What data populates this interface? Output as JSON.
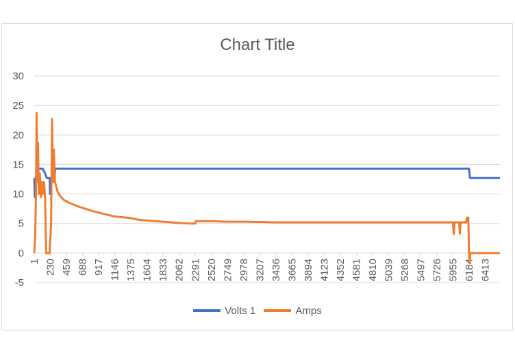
{
  "chart_data": {
    "type": "line",
    "title": "Chart Title",
    "xlabel": "",
    "ylabel": "",
    "ylim": [
      -5,
      30
    ],
    "yticks": [
      -5,
      0,
      5,
      10,
      15,
      20,
      25,
      30
    ],
    "xlim": [
      1,
      6620
    ],
    "xticks": [
      1,
      230,
      459,
      688,
      917,
      1146,
      1375,
      1604,
      1833,
      2062,
      2291,
      2520,
      2749,
      2978,
      3207,
      3436,
      3665,
      3894,
      4123,
      4352,
      4581,
      4810,
      5039,
      5268,
      5497,
      5726,
      5955,
      6184,
      6413
    ],
    "grid": true,
    "legend_position": "bottom",
    "series": [
      {
        "name": "Volts 1",
        "color": "#4472c4",
        "points": [
          [
            1,
            12.7
          ],
          [
            10,
            9.5
          ],
          [
            20,
            12.8
          ],
          [
            40,
            13.5
          ],
          [
            60,
            14.3
          ],
          [
            120,
            14.3
          ],
          [
            150,
            13.6
          ],
          [
            180,
            12.7
          ],
          [
            220,
            12.7
          ],
          [
            225,
            10.0
          ],
          [
            240,
            10.0
          ],
          [
            245,
            12.7
          ],
          [
            290,
            12.7
          ],
          [
            300,
            14.3
          ],
          [
            6180,
            14.3
          ],
          [
            6195,
            12.7
          ],
          [
            6620,
            12.7
          ]
        ]
      },
      {
        "name": "Amps",
        "color": "#ed7d31",
        "points": [
          [
            1,
            0
          ],
          [
            15,
            3
          ],
          [
            25,
            10
          ],
          [
            35,
            23.7
          ],
          [
            45,
            12
          ],
          [
            55,
            18.7
          ],
          [
            65,
            10
          ],
          [
            80,
            13.5
          ],
          [
            95,
            9.5
          ],
          [
            110,
            12
          ],
          [
            125,
            10
          ],
          [
            140,
            12
          ],
          [
            155,
            9.5
          ],
          [
            170,
            0
          ],
          [
            200,
            0
          ],
          [
            220,
            0
          ],
          [
            240,
            5
          ],
          [
            255,
            22.7
          ],
          [
            265,
            12
          ],
          [
            280,
            17.5
          ],
          [
            295,
            12
          ],
          [
            310,
            11.5
          ],
          [
            330,
            10.5
          ],
          [
            360,
            9.8
          ],
          [
            420,
            9.0
          ],
          [
            500,
            8.5
          ],
          [
            600,
            8.0
          ],
          [
            700,
            7.6
          ],
          [
            800,
            7.2
          ],
          [
            900,
            6.9
          ],
          [
            1000,
            6.6
          ],
          [
            1146,
            6.2
          ],
          [
            1300,
            6.0
          ],
          [
            1375,
            5.9
          ],
          [
            1500,
            5.6
          ],
          [
            1604,
            5.5
          ],
          [
            1833,
            5.3
          ],
          [
            2062,
            5.1
          ],
          [
            2200,
            5.0
          ],
          [
            2290,
            5.0
          ],
          [
            2300,
            5.4
          ],
          [
            2520,
            5.4
          ],
          [
            2749,
            5.3
          ],
          [
            3000,
            5.3
          ],
          [
            3436,
            5.2
          ],
          [
            4123,
            5.2
          ],
          [
            5000,
            5.2
          ],
          [
            5726,
            5.2
          ],
          [
            5900,
            5.2
          ],
          [
            5950,
            5.2
          ],
          [
            5965,
            3.2
          ],
          [
            5975,
            5.2
          ],
          [
            6040,
            5.2
          ],
          [
            6050,
            3.3
          ],
          [
            6060,
            5.2
          ],
          [
            6140,
            5.2
          ],
          [
            6150,
            6.0
          ],
          [
            6170,
            6.0
          ],
          [
            6180,
            0
          ],
          [
            6190,
            -1.5
          ],
          [
            6200,
            0
          ],
          [
            6620,
            0
          ]
        ]
      }
    ]
  }
}
